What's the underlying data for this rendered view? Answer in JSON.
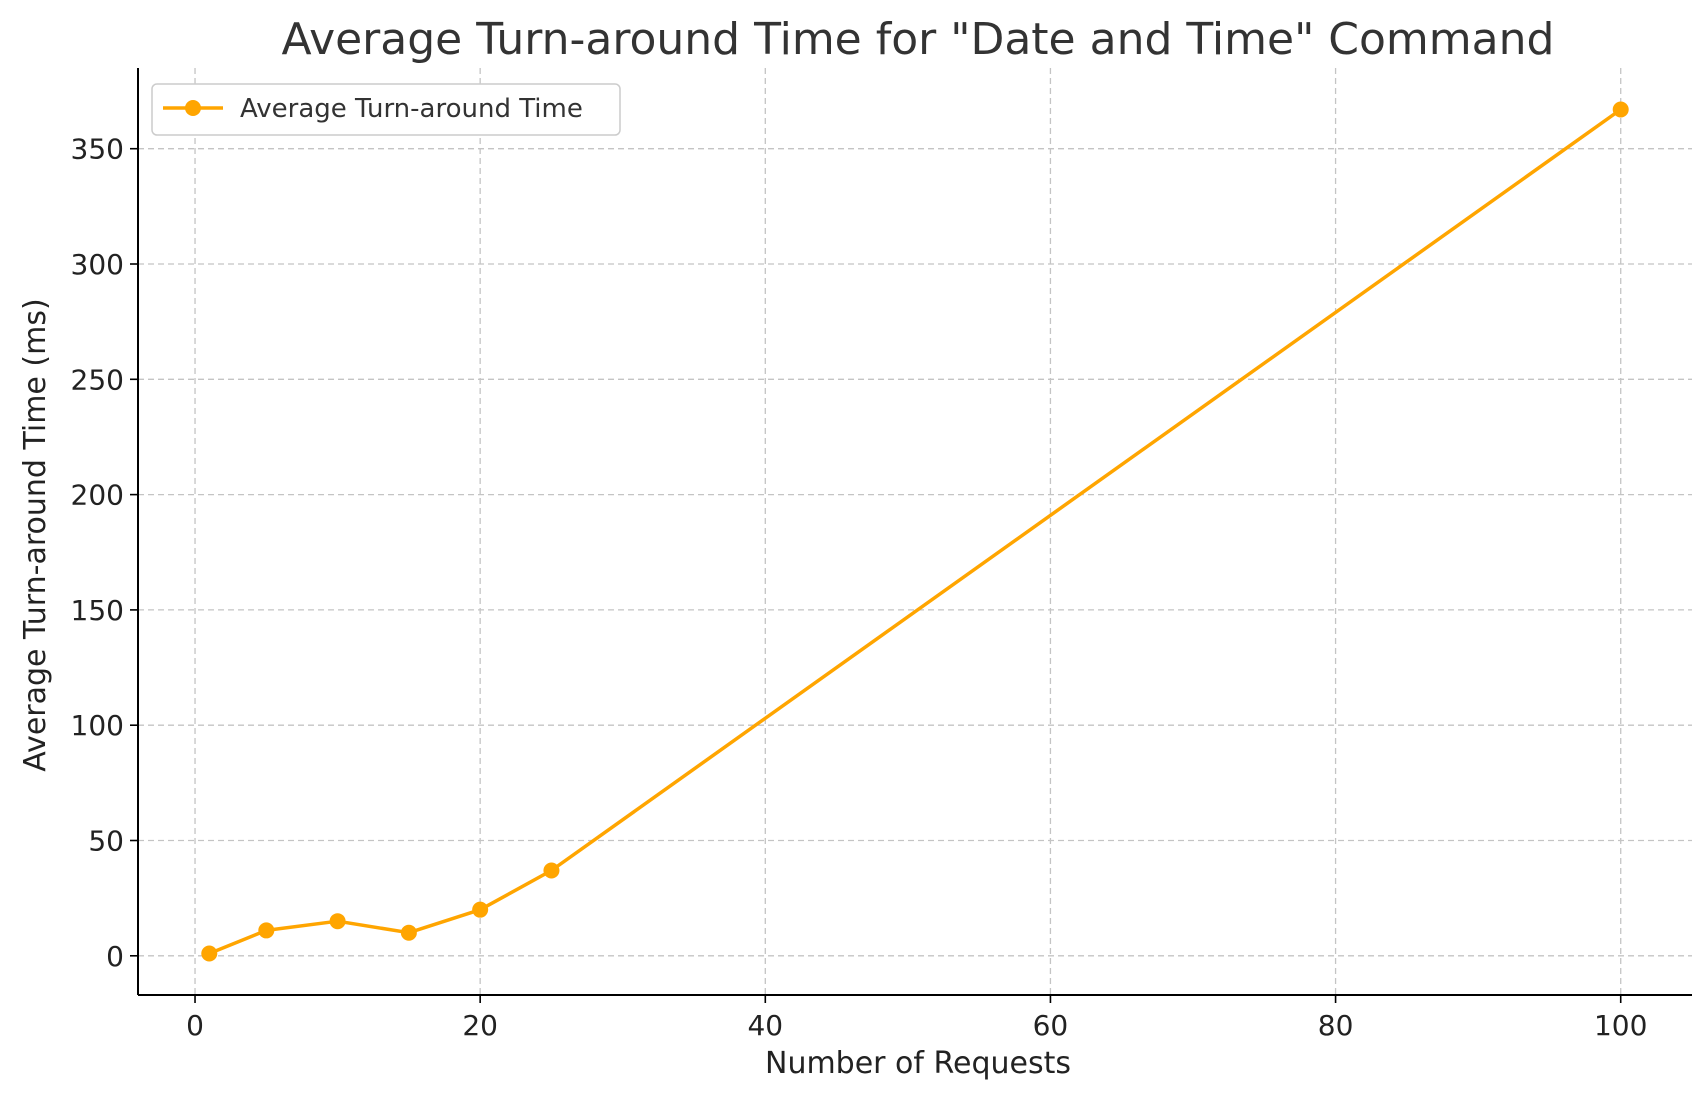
{
  "chart_data": {
    "type": "line",
    "title": "Average Turn-around Time for \"Date and Time\" Command",
    "xlabel": "Number of Requests",
    "ylabel": "Average Turn-around Time (ms)",
    "xlim": [
      -4,
      105
    ],
    "ylim": [
      -17,
      385
    ],
    "xticks": [
      0,
      20,
      40,
      60,
      80,
      100
    ],
    "yticks": [
      0,
      50,
      100,
      150,
      200,
      250,
      300,
      350
    ],
    "grid": true,
    "legend_position": "top-left",
    "series": [
      {
        "name": "Average Turn-around Time",
        "color": "#FFA500",
        "marker": "circle",
        "x": [
          1,
          5,
          10,
          15,
          20,
          25,
          100
        ],
        "y": [
          1,
          11,
          15,
          10,
          20,
          37,
          367
        ]
      }
    ]
  }
}
